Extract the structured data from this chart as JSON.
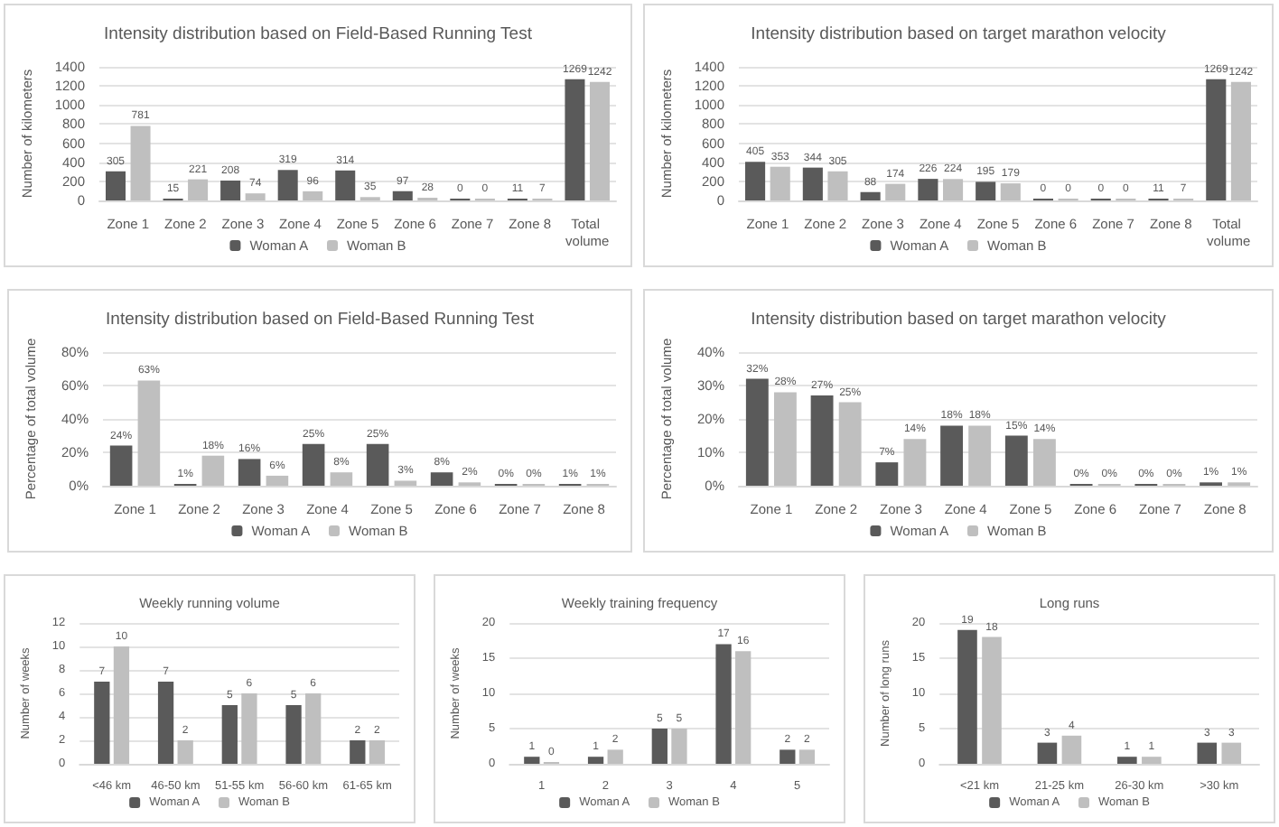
{
  "chart_data": [
    {
      "type": "bar",
      "title": "Intensity distribution based on Field-Based Running Test",
      "ylabel": "Number of kilometers",
      "categories": [
        "Zone 1",
        "Zone 2",
        "Zone 3",
        "Zone 4",
        "Zone 5",
        "Zone 6",
        "Zone 7",
        "Zone 8",
        "Total volume"
      ],
      "series": [
        {
          "name": "Woman A",
          "color": "#5a5a5a",
          "values": [
            305,
            15,
            208,
            319,
            314,
            97,
            0,
            11,
            1269
          ]
        },
        {
          "name": "Woman B",
          "color": "#bfbfbf",
          "values": [
            781,
            221,
            74,
            96,
            35,
            28,
            0,
            7,
            1242
          ]
        }
      ],
      "ylim": [
        0,
        1400
      ],
      "yticks": [
        0,
        200,
        400,
        600,
        800,
        1000,
        1200,
        1400
      ],
      "grid": "y",
      "legend": "bottom",
      "data_labels": true
    },
    {
      "type": "bar",
      "title": "Intensity distribution based on target marathon velocity",
      "ylabel": "Number of kilometers",
      "categories": [
        "Zone 1",
        "Zone 2",
        "Zone 3",
        "Zone 4",
        "Zone 5",
        "Zone 6",
        "Zone 7",
        "Zone 8",
        "Total volume"
      ],
      "series": [
        {
          "name": "Woman A",
          "color": "#5a5a5a",
          "values": [
            405,
            344,
            88,
            226,
            195,
            0,
            0,
            11,
            1269
          ]
        },
        {
          "name": "Woman B",
          "color": "#bfbfbf",
          "values": [
            353,
            305,
            174,
            224,
            179,
            0,
            0,
            7,
            1242
          ]
        }
      ],
      "ylim": [
        0,
        1400
      ],
      "yticks": [
        0,
        200,
        400,
        600,
        800,
        1000,
        1200,
        1400
      ],
      "grid": "y",
      "legend": "bottom",
      "data_labels": true
    },
    {
      "type": "bar",
      "title": "Intensity distribution based on Field-Based Running Test",
      "ylabel": "Percentage of total volume",
      "categories": [
        "Zone 1",
        "Zone 2",
        "Zone 3",
        "Zone 4",
        "Zone 5",
        "Zone 6",
        "Zone 7",
        "Zone 8"
      ],
      "series": [
        {
          "name": "Woman A",
          "color": "#5a5a5a",
          "values": [
            24,
            1,
            16,
            25,
            25,
            8,
            0,
            1
          ],
          "value_labels": [
            "24%",
            "1%",
            "16%",
            "25%",
            "25%",
            "8%",
            "0%",
            "1%"
          ]
        },
        {
          "name": "Woman B",
          "color": "#bfbfbf",
          "values": [
            63,
            18,
            6,
            8,
            3,
            2,
            0,
            1
          ],
          "value_labels": [
            "63%",
            "18%",
            "6%",
            "8%",
            "3%",
            "2%",
            "0%",
            "1%"
          ]
        }
      ],
      "ylim": [
        0,
        80
      ],
      "yticks": [
        {
          "value": 0,
          "label": "0%"
        },
        {
          "value": 20,
          "label": "20%"
        },
        {
          "value": 40,
          "label": "40%"
        },
        {
          "value": 60,
          "label": "60%"
        },
        {
          "value": 80,
          "label": "80%"
        }
      ],
      "grid": "y",
      "legend": "bottom"
    },
    {
      "type": "bar",
      "title": "Intensity distribution based on target marathon velocity",
      "ylabel": "Percentage of total volume",
      "categories": [
        "Zone 1",
        "Zone 2",
        "Zone 3",
        "Zone 4",
        "Zone 5",
        "Zone 6",
        "Zone 7",
        "Zone 8"
      ],
      "series": [
        {
          "name": "Woman A",
          "color": "#5a5a5a",
          "values": [
            32,
            27,
            7,
            18,
            15,
            0,
            0,
            1
          ],
          "value_labels": [
            "32%",
            "27%",
            "7%",
            "18%",
            "15%",
            "0%",
            "0%",
            "1%"
          ]
        },
        {
          "name": "Woman B",
          "color": "#bfbfbf",
          "values": [
            28,
            25,
            14,
            18,
            14,
            0,
            0,
            1
          ],
          "value_labels": [
            "28%",
            "25%",
            "14%",
            "18%",
            "14%",
            "0%",
            "0%",
            "1%"
          ]
        }
      ],
      "ylim": [
        0,
        40
      ],
      "yticks": [
        {
          "value": 0,
          "label": "0%"
        },
        {
          "value": 10,
          "label": "10%"
        },
        {
          "value": 20,
          "label": "20%"
        },
        {
          "value": 30,
          "label": "30%"
        },
        {
          "value": 40,
          "label": "40%"
        }
      ],
      "grid": "y",
      "legend": "bottom"
    },
    {
      "type": "bar",
      "title": "Weekly running volume",
      "ylabel": "Number of weeks",
      "categories": [
        "<46 km",
        "46-50 km",
        "51-55 km",
        "56-60 km",
        "61-65 km"
      ],
      "series": [
        {
          "name": "Woman A",
          "color": "#5a5a5a",
          "values": [
            7,
            7,
            5,
            5,
            2
          ]
        },
        {
          "name": "Woman B",
          "color": "#bfbfbf",
          "values": [
            10,
            2,
            6,
            6,
            2
          ]
        }
      ],
      "ylim": [
        0,
        12
      ],
      "yticks": [
        0,
        2,
        4,
        6,
        8,
        10,
        12
      ],
      "grid": "y",
      "legend": "bottom",
      "data_labels": true
    },
    {
      "type": "bar",
      "title": "Weekly training frequency",
      "ylabel": "Number of weeks",
      "categories": [
        "1",
        "2",
        "3",
        "4",
        "5"
      ],
      "series": [
        {
          "name": "Woman A",
          "color": "#5a5a5a",
          "values": [
            1,
            1,
            5,
            17,
            2
          ]
        },
        {
          "name": "Woman B",
          "color": "#bfbfbf",
          "values": [
            0,
            2,
            5,
            16,
            2
          ]
        }
      ],
      "ylim": [
        0,
        20
      ],
      "yticks": [
        0,
        5,
        10,
        15,
        20
      ],
      "grid": "y",
      "legend": "bottom",
      "data_labels": true
    },
    {
      "type": "bar",
      "title": "Long runs",
      "ylabel": "Number of long runs",
      "categories": [
        "<21 km",
        "21-25 km",
        "26-30 km",
        ">30 km"
      ],
      "series": [
        {
          "name": "Woman A",
          "color": "#5a5a5a",
          "values": [
            19,
            3,
            1,
            3
          ]
        },
        {
          "name": "Woman B",
          "color": "#bfbfbf",
          "values": [
            18,
            4,
            1,
            3
          ]
        }
      ],
      "ylim": [
        0,
        20
      ],
      "yticks": [
        0,
        5,
        10,
        15,
        20
      ],
      "grid": "y",
      "legend": "bottom",
      "data_labels": true
    }
  ]
}
